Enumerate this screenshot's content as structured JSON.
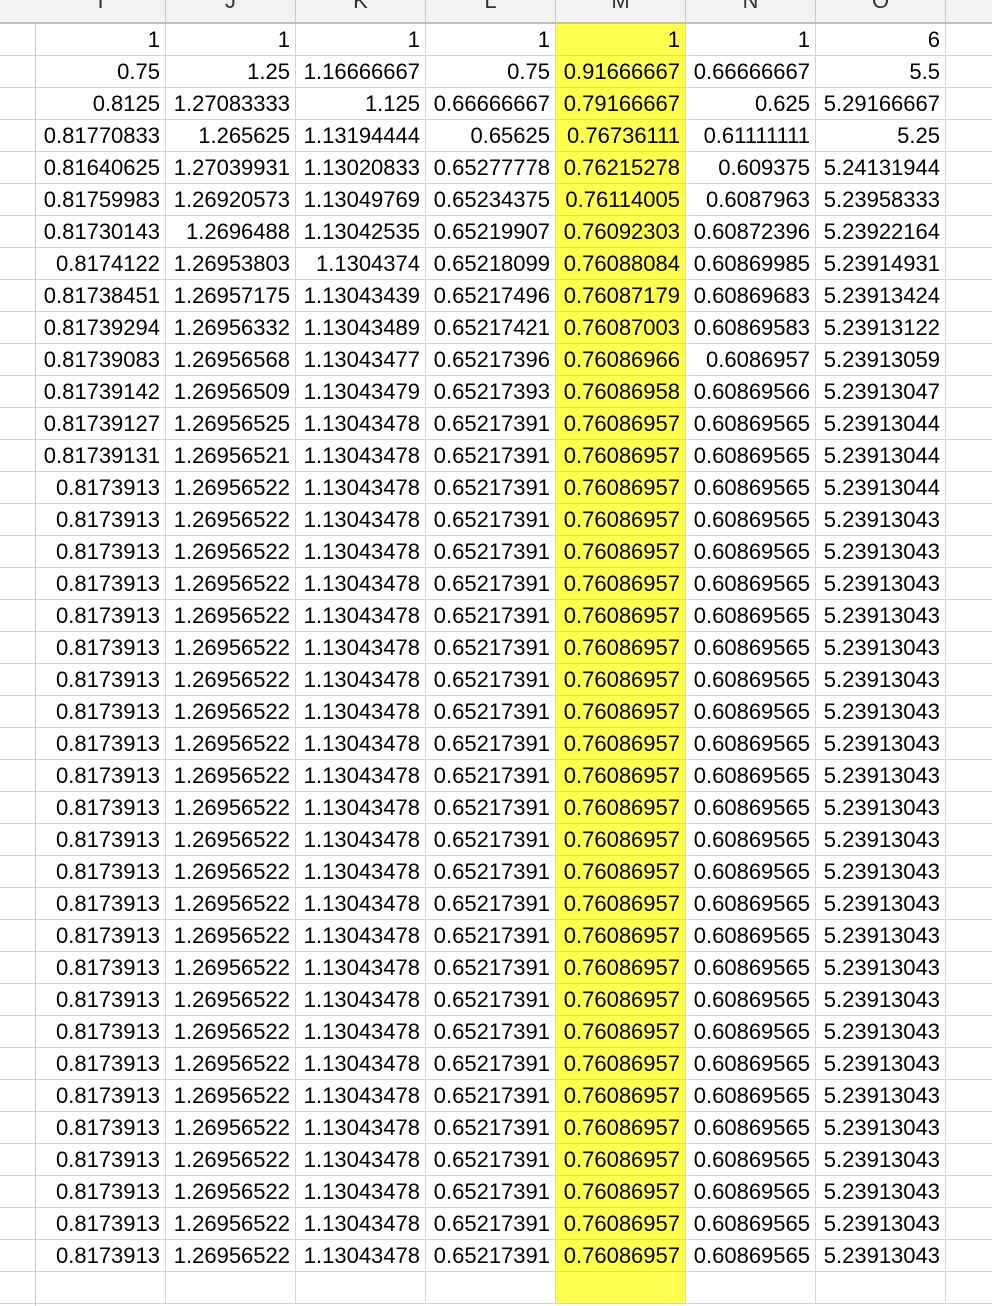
{
  "sheet": {
    "highlight_color": "#ffff4d",
    "columns": [
      "I",
      "J",
      "K",
      "L",
      "M",
      "N",
      "O"
    ],
    "highlighted_column": "M",
    "rows": [
      [
        "1",
        "1",
        "1",
        "1",
        "1",
        "1",
        "6"
      ],
      [
        "0.75",
        "1.25",
        "1.16666667",
        "0.75",
        "0.91666667",
        "0.66666667",
        "5.5"
      ],
      [
        "0.8125",
        "1.27083333",
        "1.125",
        "0.66666667",
        "0.79166667",
        "0.625",
        "5.29166667"
      ],
      [
        "0.81770833",
        "1.265625",
        "1.13194444",
        "0.65625",
        "0.76736111",
        "0.61111111",
        "5.25"
      ],
      [
        "0.81640625",
        "1.27039931",
        "1.13020833",
        "0.65277778",
        "0.76215278",
        "0.609375",
        "5.24131944"
      ],
      [
        "0.81759983",
        "1.26920573",
        "1.13049769",
        "0.65234375",
        "0.76114005",
        "0.6087963",
        "5.23958333"
      ],
      [
        "0.81730143",
        "1.2696488",
        "1.13042535",
        "0.65219907",
        "0.76092303",
        "0.60872396",
        "5.23922164"
      ],
      [
        "0.8174122",
        "1.26953803",
        "1.1304374",
        "0.65218099",
        "0.76088084",
        "0.60869985",
        "5.23914931"
      ],
      [
        "0.81738451",
        "1.26957175",
        "1.13043439",
        "0.65217496",
        "0.76087179",
        "0.60869683",
        "5.23913424"
      ],
      [
        "0.81739294",
        "1.26956332",
        "1.13043489",
        "0.65217421",
        "0.76087003",
        "0.60869583",
        "5.23913122"
      ],
      [
        "0.81739083",
        "1.26956568",
        "1.13043477",
        "0.65217396",
        "0.76086966",
        "0.6086957",
        "5.23913059"
      ],
      [
        "0.81739142",
        "1.26956509",
        "1.13043479",
        "0.65217393",
        "0.76086958",
        "0.60869566",
        "5.23913047"
      ],
      [
        "0.81739127",
        "1.26956525",
        "1.13043478",
        "0.65217391",
        "0.76086957",
        "0.60869565",
        "5.23913044"
      ],
      [
        "0.81739131",
        "1.26956521",
        "1.13043478",
        "0.65217391",
        "0.76086957",
        "0.60869565",
        "5.23913044"
      ],
      [
        "0.8173913",
        "1.26956522",
        "1.13043478",
        "0.65217391",
        "0.76086957",
        "0.60869565",
        "5.23913044"
      ],
      [
        "0.8173913",
        "1.26956522",
        "1.13043478",
        "0.65217391",
        "0.76086957",
        "0.60869565",
        "5.23913043"
      ],
      [
        "0.8173913",
        "1.26956522",
        "1.13043478",
        "0.65217391",
        "0.76086957",
        "0.60869565",
        "5.23913043"
      ],
      [
        "0.8173913",
        "1.26956522",
        "1.13043478",
        "0.65217391",
        "0.76086957",
        "0.60869565",
        "5.23913043"
      ],
      [
        "0.8173913",
        "1.26956522",
        "1.13043478",
        "0.65217391",
        "0.76086957",
        "0.60869565",
        "5.23913043"
      ],
      [
        "0.8173913",
        "1.26956522",
        "1.13043478",
        "0.65217391",
        "0.76086957",
        "0.60869565",
        "5.23913043"
      ],
      [
        "0.8173913",
        "1.26956522",
        "1.13043478",
        "0.65217391",
        "0.76086957",
        "0.60869565",
        "5.23913043"
      ],
      [
        "0.8173913",
        "1.26956522",
        "1.13043478",
        "0.65217391",
        "0.76086957",
        "0.60869565",
        "5.23913043"
      ],
      [
        "0.8173913",
        "1.26956522",
        "1.13043478",
        "0.65217391",
        "0.76086957",
        "0.60869565",
        "5.23913043"
      ],
      [
        "0.8173913",
        "1.26956522",
        "1.13043478",
        "0.65217391",
        "0.76086957",
        "0.60869565",
        "5.23913043"
      ],
      [
        "0.8173913",
        "1.26956522",
        "1.13043478",
        "0.65217391",
        "0.76086957",
        "0.60869565",
        "5.23913043"
      ],
      [
        "0.8173913",
        "1.26956522",
        "1.13043478",
        "0.65217391",
        "0.76086957",
        "0.60869565",
        "5.23913043"
      ],
      [
        "0.8173913",
        "1.26956522",
        "1.13043478",
        "0.65217391",
        "0.76086957",
        "0.60869565",
        "5.23913043"
      ],
      [
        "0.8173913",
        "1.26956522",
        "1.13043478",
        "0.65217391",
        "0.76086957",
        "0.60869565",
        "5.23913043"
      ],
      [
        "0.8173913",
        "1.26956522",
        "1.13043478",
        "0.65217391",
        "0.76086957",
        "0.60869565",
        "5.23913043"
      ],
      [
        "0.8173913",
        "1.26956522",
        "1.13043478",
        "0.65217391",
        "0.76086957",
        "0.60869565",
        "5.23913043"
      ],
      [
        "0.8173913",
        "1.26956522",
        "1.13043478",
        "0.65217391",
        "0.76086957",
        "0.60869565",
        "5.23913043"
      ],
      [
        "0.8173913",
        "1.26956522",
        "1.13043478",
        "0.65217391",
        "0.76086957",
        "0.60869565",
        "5.23913043"
      ],
      [
        "0.8173913",
        "1.26956522",
        "1.13043478",
        "0.65217391",
        "0.76086957",
        "0.60869565",
        "5.23913043"
      ],
      [
        "0.8173913",
        "1.26956522",
        "1.13043478",
        "0.65217391",
        "0.76086957",
        "0.60869565",
        "5.23913043"
      ],
      [
        "0.8173913",
        "1.26956522",
        "1.13043478",
        "0.65217391",
        "0.76086957",
        "0.60869565",
        "5.23913043"
      ],
      [
        "0.8173913",
        "1.26956522",
        "1.13043478",
        "0.65217391",
        "0.76086957",
        "0.60869565",
        "5.23913043"
      ],
      [
        "0.8173913",
        "1.26956522",
        "1.13043478",
        "0.65217391",
        "0.76086957",
        "0.60869565",
        "5.23913043"
      ],
      [
        "0.8173913",
        "1.26956522",
        "1.13043478",
        "0.65217391",
        "0.76086957",
        "0.60869565",
        "5.23913043"
      ],
      [
        "0.8173913",
        "1.26956522",
        "1.13043478",
        "0.65217391",
        "0.76086957",
        "0.60869565",
        "5.23913043"
      ],
      [
        "",
        "",
        "",
        "",
        "",
        "",
        ""
      ]
    ]
  }
}
